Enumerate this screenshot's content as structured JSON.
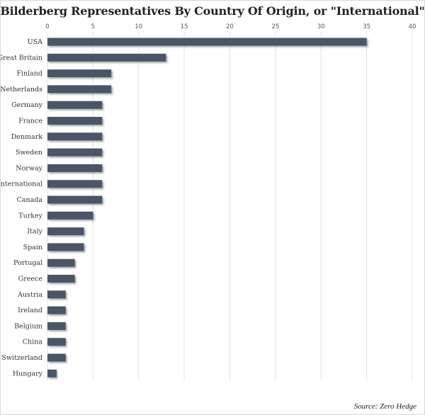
{
  "chart_data": {
    "type": "bar",
    "orientation": "horizontal",
    "title": "Bilderberg Representatives By Country Of Origin, or \"International\"",
    "xlabel": "",
    "ylabel": "",
    "xlim": [
      0,
      40
    ],
    "x_ticks": [
      0,
      5,
      10,
      15,
      20,
      25,
      30,
      35,
      40
    ],
    "x_axis_position": "top",
    "grid": "vertical",
    "categories": [
      "USA",
      "Great Britain",
      "Finland",
      "Netherlands",
      "Germany",
      "France",
      "Denmark",
      "Sweden",
      "Norway",
      "International",
      "Canada",
      "Turkey",
      "Italy",
      "Spain",
      "Portugal",
      "Greece",
      "Austria",
      "Ireland",
      "Belgium",
      "China",
      "Switzerland",
      "Hungary"
    ],
    "values": [
      35,
      13,
      7,
      7,
      6,
      6,
      6,
      6,
      6,
      6,
      6,
      5,
      4,
      4,
      3,
      3,
      2,
      2,
      2,
      2,
      2,
      1
    ],
    "bar_color": "#4b5468",
    "source": "Source: Zero Hedge"
  }
}
